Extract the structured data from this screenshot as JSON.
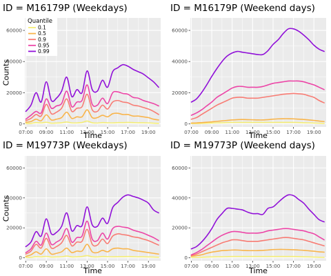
{
  "chart_data": [
    {
      "type": "line",
      "title": "ID = M16179P (Weekdays)",
      "xlabel": "Time",
      "ylabel": "Counts",
      "ylim": [
        -2000,
        68000
      ],
      "xlim": [
        6.9,
        20.2
      ],
      "y_ticks": [
        0,
        20000,
        40000,
        60000
      ],
      "x_tick_labels": [
        "07:00",
        "09:00",
        "11:00",
        "13:00",
        "15:00",
        "17:00",
        "19:00"
      ],
      "x_tick_values": [
        7,
        9,
        11,
        13,
        15,
        17,
        19
      ],
      "grid": true,
      "legend": {
        "title": "Quantile",
        "placement": "top-left",
        "entries": [
          "0.1",
          "0.5",
          "0.9",
          "0.95",
          "0.99"
        ]
      },
      "x": [
        7,
        7.5,
        8,
        8.5,
        9,
        9.5,
        10,
        10.5,
        11,
        11.5,
        12,
        12.5,
        13,
        13.5,
        14,
        14.5,
        15,
        15.5,
        16,
        16.5,
        17,
        17.5,
        18,
        18.5,
        19,
        19.5,
        20
      ],
      "series": [
        {
          "name": "0.1",
          "color": "#f5ee77",
          "values": [
            200,
            300,
            800,
            600,
            1000,
            400,
            500,
            700,
            1200,
            600,
            600,
            900,
            1800,
            700,
            500,
            800,
            700,
            600,
            800,
            800,
            900,
            800,
            700,
            700,
            600,
            400,
            300
          ]
        },
        {
          "name": "0.5",
          "color": "#f9b44a",
          "values": [
            1000,
            1500,
            3000,
            2000,
            5800,
            2500,
            3000,
            4000,
            7500,
            3500,
            4500,
            4500,
            9000,
            4000,
            4000,
            5500,
            4500,
            6500,
            6800,
            6000,
            6000,
            5000,
            5000,
            4500,
            4000,
            3000,
            2500
          ]
        },
        {
          "name": "0.9",
          "color": "#f87b73",
          "values": [
            2000,
            3500,
            6000,
            5000,
            12500,
            6500,
            7500,
            10000,
            16000,
            8000,
            10000,
            11000,
            19000,
            9000,
            8000,
            12000,
            9500,
            14000,
            15000,
            14000,
            13500,
            12000,
            11500,
            10500,
            9500,
            8000,
            6000
          ]
        },
        {
          "name": "0.95",
          "color": "#ec44a6",
          "values": [
            3000,
            5500,
            8000,
            7000,
            16000,
            10000,
            11500,
            13000,
            21000,
            11000,
            14000,
            15000,
            25000,
            12500,
            12000,
            16500,
            13000,
            20000,
            20500,
            19500,
            19000,
            17000,
            16500,
            15000,
            14000,
            13000,
            11500
          ]
        },
        {
          "name": "0.99",
          "color": "#9010d8",
          "values": [
            8000,
            12000,
            20000,
            14000,
            27000,
            15000,
            16500,
            21000,
            30000,
            17500,
            22000,
            20000,
            34000,
            22000,
            21000,
            28000,
            23500,
            33500,
            36000,
            38000,
            37000,
            35000,
            33500,
            32000,
            29500,
            27000,
            23500
          ]
        }
      ]
    },
    {
      "type": "line",
      "title": "ID = M16179P (Weekend days)",
      "xlabel": "Time",
      "ylabel": "",
      "ylim": [
        -2000,
        68000
      ],
      "xlim": [
        6.9,
        20.2
      ],
      "y_ticks": [
        0,
        20000,
        40000,
        60000
      ],
      "x_tick_labels": [
        "07:00",
        "09:00",
        "11:00",
        "13:00",
        "15:00",
        "17:00",
        "19:00"
      ],
      "x_tick_values": [
        7,
        9,
        11,
        13,
        15,
        17,
        19
      ],
      "grid": true,
      "x": [
        7,
        7.5,
        8,
        8.5,
        9,
        9.5,
        10,
        10.5,
        11,
        11.5,
        12,
        12.5,
        13,
        13.5,
        14,
        14.5,
        15,
        15.5,
        16,
        16.5,
        17,
        17.5,
        18,
        18.5,
        19,
        19.5,
        20
      ],
      "series": [
        {
          "name": "0.1",
          "color": "#f5ee77",
          "values": [
            200,
            200,
            300,
            400,
            500,
            600,
            700,
            800,
            900,
            900,
            900,
            900,
            900,
            900,
            900,
            900,
            900,
            900,
            900,
            900,
            900,
            800,
            700,
            600,
            500,
            400,
            300
          ]
        },
        {
          "name": "0.5",
          "color": "#f9b44a",
          "values": [
            500,
            600,
            800,
            1000,
            1300,
            1600,
            1900,
            2200,
            2500,
            2700,
            2800,
            2700,
            2600,
            2500,
            2500,
            2700,
            3000,
            3200,
            3300,
            3300,
            3200,
            3000,
            2800,
            2500,
            2200,
            1800,
            1500
          ]
        },
        {
          "name": "0.9",
          "color": "#f87b73",
          "values": [
            3000,
            4000,
            6000,
            8000,
            10000,
            12000,
            13500,
            15000,
            16500,
            17000,
            17000,
            16500,
            16500,
            16500,
            17000,
            17500,
            18000,
            18500,
            19000,
            19300,
            19500,
            19300,
            19000,
            18000,
            17000,
            15000,
            13500
          ]
        },
        {
          "name": "0.95",
          "color": "#ec44a6",
          "values": [
            5500,
            7000,
            9000,
            11500,
            14000,
            17000,
            19000,
            21000,
            23000,
            24000,
            24000,
            23500,
            23500,
            23500,
            24000,
            25000,
            26000,
            26500,
            27000,
            27500,
            27500,
            27500,
            27000,
            26000,
            25000,
            23500,
            22000
          ]
        },
        {
          "name": "0.99",
          "color": "#9010d8",
          "values": [
            14000,
            16000,
            20000,
            25000,
            30500,
            35500,
            40000,
            43500,
            45500,
            46500,
            46000,
            45500,
            45000,
            44500,
            44500,
            47000,
            51000,
            54000,
            58000,
            61000,
            61000,
            59500,
            57000,
            54000,
            50500,
            48000,
            46500
          ]
        }
      ]
    },
    {
      "type": "line",
      "title": "ID = M19773P (Weekdays)",
      "xlabel": "Time",
      "ylabel": "Counts",
      "ylim": [
        -2000,
        68000
      ],
      "xlim": [
        6.9,
        20.2
      ],
      "y_ticks": [
        0,
        20000,
        40000,
        60000
      ],
      "x_tick_labels": [
        "07:00",
        "09:00",
        "11:00",
        "13:00",
        "15:00",
        "17:00",
        "19:00"
      ],
      "x_tick_values": [
        7,
        9,
        11,
        13,
        15,
        17,
        19
      ],
      "grid": true,
      "x": [
        7,
        7.5,
        8,
        8.5,
        9,
        9.5,
        10,
        10.5,
        11,
        11.5,
        12,
        12.5,
        13,
        13.5,
        14,
        14.5,
        15,
        15.5,
        16,
        16.5,
        17,
        17.5,
        18,
        18.5,
        19,
        19.5,
        20
      ],
      "series": [
        {
          "name": "0.1",
          "color": "#f5ee77",
          "values": [
            300,
            300,
            800,
            600,
            1000,
            500,
            600,
            700,
            1200,
            600,
            700,
            900,
            1500,
            700,
            600,
            900,
            800,
            700,
            800,
            800,
            900,
            800,
            700,
            700,
            600,
            500,
            400
          ]
        },
        {
          "name": "0.5",
          "color": "#f9b44a",
          "values": [
            1000,
            2000,
            4000,
            2500,
            6000,
            2500,
            3000,
            4000,
            6500,
            3500,
            4500,
            4500,
            9000,
            4000,
            3500,
            5000,
            4000,
            6000,
            6500,
            6000,
            6000,
            5000,
            4500,
            4000,
            3500,
            3000,
            2500
          ]
        },
        {
          "name": "0.9",
          "color": "#f87b73",
          "values": [
            2500,
            4500,
            9000,
            6500,
            13000,
            6500,
            7500,
            10000,
            15000,
            8000,
            10500,
            11000,
            19000,
            9000,
            8500,
            12500,
            9500,
            14500,
            16000,
            15500,
            15000,
            14000,
            13500,
            12500,
            11500,
            10000,
            8500
          ]
        },
        {
          "name": "0.95",
          "color": "#ec44a6",
          "values": [
            3500,
            6000,
            11000,
            8500,
            16500,
            9000,
            10500,
            13000,
            19500,
            10500,
            13500,
            14500,
            24500,
            12500,
            11500,
            16500,
            12500,
            19500,
            21000,
            20500,
            20000,
            18500,
            17500,
            16500,
            15000,
            13500,
            11500
          ]
        },
        {
          "name": "0.99",
          "color": "#9010d8",
          "values": [
            7500,
            10500,
            17500,
            14500,
            26000,
            16000,
            17000,
            21000,
            30000,
            18000,
            21500,
            21500,
            34000,
            22000,
            21000,
            26500,
            23000,
            33500,
            37000,
            40500,
            42000,
            41000,
            40000,
            38500,
            36500,
            32000,
            30000
          ]
        }
      ]
    },
    {
      "type": "line",
      "title": "ID = M19773P (Weekend days)",
      "xlabel": "Time",
      "ylabel": "",
      "ylim": [
        -2000,
        68000
      ],
      "xlim": [
        6.9,
        20.2
      ],
      "y_ticks": [
        0,
        20000,
        40000,
        60000
      ],
      "x_tick_labels": [
        "07:00",
        "09:00",
        "11:00",
        "13:00",
        "15:00",
        "17:00",
        "19:00"
      ],
      "x_tick_values": [
        7,
        9,
        11,
        13,
        15,
        17,
        19
      ],
      "grid": true,
      "x": [
        7,
        7.5,
        8,
        8.5,
        9,
        9.5,
        10,
        10.5,
        11,
        11.5,
        12,
        12.5,
        13,
        13.5,
        14,
        14.5,
        15,
        15.5,
        16,
        16.5,
        17,
        17.5,
        18,
        18.5,
        19,
        19.5,
        20
      ],
      "series": [
        {
          "name": "0.1",
          "color": "#f5ee77",
          "values": [
            300,
            300,
            400,
            500,
            600,
            700,
            700,
            800,
            900,
            900,
            900,
            900,
            900,
            900,
            900,
            900,
            900,
            900,
            900,
            900,
            900,
            800,
            700,
            600,
            500,
            400,
            300
          ]
        },
        {
          "name": "0.5",
          "color": "#f9b44a",
          "values": [
            1000,
            1500,
            2000,
            3000,
            3800,
            4300,
            4800,
            5000,
            5200,
            5200,
            5000,
            4800,
            4800,
            4800,
            5000,
            5200,
            5500,
            5600,
            5600,
            5500,
            5400,
            5200,
            5000,
            4700,
            4400,
            4000,
            3800
          ]
        },
        {
          "name": "0.9",
          "color": "#f87b73",
          "values": [
            1500,
            2500,
            4000,
            5500,
            7000,
            8500,
            10000,
            11000,
            12000,
            12000,
            11500,
            11000,
            11000,
            11000,
            11500,
            12000,
            12500,
            13000,
            13500,
            13500,
            13000,
            12500,
            12000,
            11000,
            10000,
            9000,
            8000
          ]
        },
        {
          "name": "0.95",
          "color": "#ec44a6",
          "values": [
            2000,
            3500,
            5500,
            8000,
            10500,
            13000,
            15000,
            16500,
            17500,
            17500,
            17000,
            16500,
            16500,
            16500,
            17000,
            18000,
            18500,
            19000,
            19500,
            19500,
            19000,
            18500,
            18000,
            17000,
            16000,
            14000,
            12000
          ]
        },
        {
          "name": "0.99",
          "color": "#9010d8",
          "values": [
            6000,
            7500,
            10500,
            14500,
            19500,
            25500,
            29500,
            33000,
            33000,
            32500,
            32000,
            30500,
            29500,
            29500,
            29000,
            33000,
            34000,
            37000,
            40000,
            42000,
            41500,
            39000,
            36500,
            32500,
            29000,
            25500,
            24000
          ]
        }
      ]
    }
  ]
}
